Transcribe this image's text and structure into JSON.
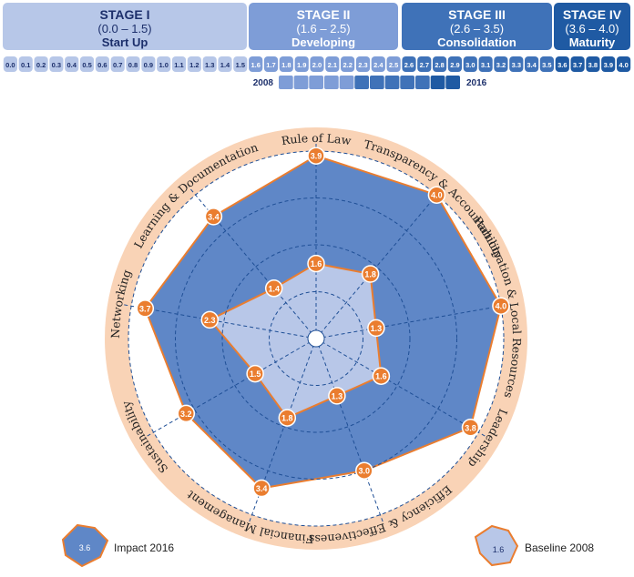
{
  "stages": [
    {
      "title": "STAGE I",
      "range": "(0.0 – 1.5)",
      "name": "Start Up"
    },
    {
      "title": "STAGE II",
      "range": "(1.6 – 2.5)",
      "name": "Developing"
    },
    {
      "title": "STAGE III",
      "range": "(2.6 – 3.5)",
      "name": "Consolidation"
    },
    {
      "title": "STAGE IV",
      "range": "(3.6 – 4.0)",
      "name": "Maturity"
    }
  ],
  "scale_labels": [
    "0.0",
    "0.1",
    "0.2",
    "0.3",
    "0.4",
    "0.5",
    "0.6",
    "0.7",
    "0.8",
    "0.9",
    "1.0",
    "1.1",
    "1.2",
    "1.3",
    "1.4",
    "1.5",
    "1.6",
    "1.7",
    "1.8",
    "1.9",
    "2.0",
    "2.1",
    "2.2",
    "2.3",
    "2.4",
    "2.5",
    "2.6",
    "2.7",
    "2.8",
    "2.9",
    "3.0",
    "3.1",
    "3.2",
    "3.3",
    "3.4",
    "3.5",
    "3.6",
    "3.7",
    "3.8",
    "3.9",
    "4.0"
  ],
  "timeline": {
    "start_label": "2008",
    "end_label": "2016"
  },
  "colors": {
    "stage1": "#b7c7e8",
    "stage2": "#7e9dd7",
    "stage3": "#3f72b8",
    "stage4": "#1f5aa3",
    "impact_fill": "#5f87c7",
    "baseline_fill": "#b8c7e8",
    "marker": "#ea7d2f",
    "ring": "#f9d3b6"
  },
  "chart_data": {
    "type": "radar",
    "rmax": 4.0,
    "axes": [
      "Rule of Law",
      "Transparency & Accountability",
      "Participation & Local Resources",
      "Leadership",
      "Efficiency & Effectiveness",
      "Financial Management",
      "Sustainability",
      "Networking",
      "Learning & Documentation"
    ],
    "series": [
      {
        "name": "Impact 2016",
        "values": [
          3.9,
          4.0,
          4.0,
          3.8,
          3.0,
          3.4,
          3.2,
          3.7,
          3.4
        ]
      },
      {
        "name": "Baseline 2008",
        "values": [
          1.6,
          1.8,
          1.3,
          1.6,
          1.3,
          1.8,
          1.5,
          2.3,
          1.4
        ]
      }
    ],
    "legend": [
      {
        "label": "Impact 2016",
        "sample_value": "3.6"
      },
      {
        "label": "Baseline 2008",
        "sample_value": "1.6"
      }
    ]
  }
}
